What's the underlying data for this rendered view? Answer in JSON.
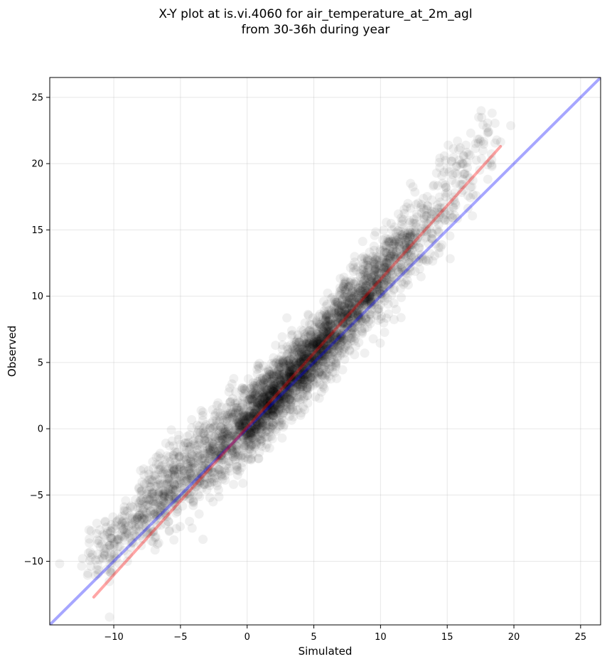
{
  "chart_data": {
    "type": "scatter",
    "title": [
      "X-Y plot at is.vi.4060 for air_temperature_at_2m_agl",
      "from 30-36h during year"
    ],
    "xlabel": "Simulated",
    "ylabel": "Observed",
    "xlim": [
      -14.8,
      26.5
    ],
    "ylim": [
      -14.8,
      26.5
    ],
    "x_ticks": [
      -10,
      -5,
      0,
      5,
      10,
      15,
      20,
      25
    ],
    "y_ticks": [
      -10,
      -5,
      0,
      5,
      10,
      15,
      20,
      25
    ],
    "x_tick_labels": [
      "−10",
      "−5",
      "0",
      "5",
      "10",
      "15",
      "20",
      "25"
    ],
    "y_tick_labels": [
      "−10",
      "−5",
      "0",
      "5",
      "10",
      "15",
      "20",
      "25"
    ],
    "grid": true,
    "point_color": "#000000",
    "point_alpha": 0.06,
    "lines": [
      {
        "kind": "one-to-one",
        "color": "#0000ff",
        "x": [
          -14.8,
          26.5
        ],
        "y": [
          -14.8,
          26.5
        ]
      },
      {
        "kind": "regression-fit",
        "color": "#ff0000",
        "x": [
          -11.5,
          19.0
        ],
        "y": [
          -12.7,
          21.3
        ]
      }
    ],
    "density_clusters": [
      {
        "x": -10.5,
        "y": -9.0,
        "sx": 1.0,
        "sy": 1.4,
        "rho": 0.5,
        "n": 70
      },
      {
        "x": -8.0,
        "y": -6.5,
        "sx": 1.5,
        "sy": 1.8,
        "rho": 0.6,
        "n": 180
      },
      {
        "x": -5.5,
        "y": -4.0,
        "sx": 1.5,
        "sy": 2.0,
        "rho": 0.6,
        "n": 280
      },
      {
        "x": -2.5,
        "y": -1.5,
        "sx": 1.6,
        "sy": 2.2,
        "rho": 0.7,
        "n": 330
      },
      {
        "x": 0.5,
        "y": 1.0,
        "sx": 1.5,
        "sy": 2.1,
        "rho": 0.75,
        "n": 520
      },
      {
        "x": 2.5,
        "y": 3.0,
        "sx": 1.4,
        "sy": 2.0,
        "rho": 0.75,
        "n": 650
      },
      {
        "x": 5.0,
        "y": 5.5,
        "sx": 1.5,
        "sy": 2.0,
        "rho": 0.75,
        "n": 600
      },
      {
        "x": 7.5,
        "y": 8.5,
        "sx": 1.5,
        "sy": 2.0,
        "rho": 0.75,
        "n": 480
      },
      {
        "x": 10.0,
        "y": 11.5,
        "sx": 1.5,
        "sy": 2.0,
        "rho": 0.75,
        "n": 360
      },
      {
        "x": 12.5,
        "y": 14.5,
        "sx": 1.6,
        "sy": 2.2,
        "rho": 0.7,
        "n": 200
      },
      {
        "x": 15.5,
        "y": 18.0,
        "sx": 1.4,
        "sy": 2.3,
        "rho": 0.6,
        "n": 90
      },
      {
        "x": 17.5,
        "y": 21.5,
        "sx": 1.0,
        "sy": 1.3,
        "rho": 0.5,
        "n": 35
      }
    ]
  }
}
